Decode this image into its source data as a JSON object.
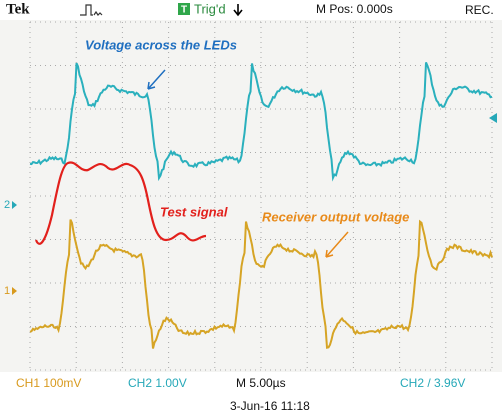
{
  "header": {
    "brand": "Tek",
    "trigger_icon": "T",
    "trigger_status": "Trig'd",
    "position": "M Pos: 0.000s",
    "mode": "REC."
  },
  "annotations": {
    "cyan": "Voltage across the LEDs",
    "red": "Test signal",
    "orange": "Receiver output voltage"
  },
  "markers": {
    "ch2": "2",
    "ch1": "1"
  },
  "footer": {
    "ch1": "CH1 100mV",
    "ch2": "CH2 1.00V",
    "timebase": "M 5.00µs",
    "trigger": "CH2 / 3.96V",
    "date": "3-Jun-16 11:18"
  }
}
